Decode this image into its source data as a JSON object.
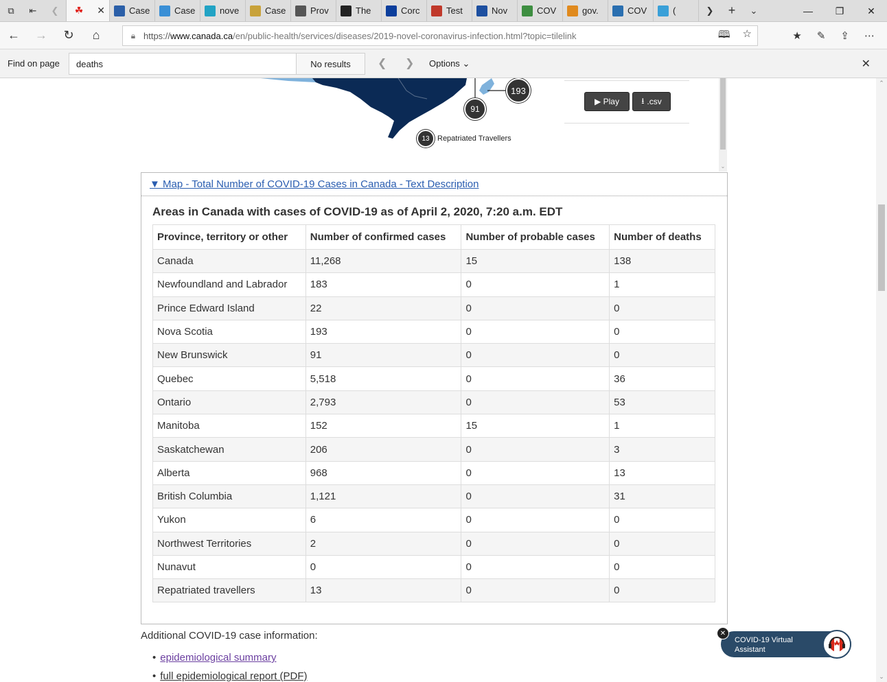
{
  "browser": {
    "tabs": [
      {
        "label": "",
        "icon": "maple-leaf-icon",
        "active": true
      },
      {
        "label": "Case",
        "icon": "cbc-icon"
      },
      {
        "label": "Case",
        "icon": "chart-icon"
      },
      {
        "label": "nove",
        "icon": "cross-icon"
      },
      {
        "label": "Case",
        "icon": "doc-icon"
      },
      {
        "label": "Prov",
        "icon": "bison-icon"
      },
      {
        "label": "The",
        "icon": "globe-dark-icon"
      },
      {
        "label": "Corc",
        "icon": "quebec-flag-icon"
      },
      {
        "label": "Test",
        "icon": "pen-icon"
      },
      {
        "label": "Nov",
        "icon": "ns-flag-icon"
      },
      {
        "label": "COV",
        "icon": "plant-icon"
      },
      {
        "label": "gov.",
        "icon": "leaf-cluster-icon"
      },
      {
        "label": "COV",
        "icon": "shield-icon"
      },
      {
        "label": "(",
        "icon": "dome-icon"
      }
    ],
    "url_prefix": "https://",
    "url_host": "www.canada.ca",
    "url_path": "/en/public-health/services/diseases/2019-novel-coronavirus-infection.html?topic=tilelink"
  },
  "findbar": {
    "label": "Find on page",
    "query": "deaths",
    "result": "No results",
    "options_label": "Options"
  },
  "map": {
    "bubbles": [
      {
        "label": "193"
      },
      {
        "label": "91"
      },
      {
        "label": "13"
      }
    ],
    "repatriated_label": "Repatriated Travellers",
    "play_label": "▶ Play",
    "csv_label": ".csv"
  },
  "details": {
    "summary": "▼ Map - Total Number of COVID-19 Cases in Canada - Text Description",
    "caption": "Areas in Canada with cases of COVID-19 as of April 2, 2020, 7:20 a.m. EDT",
    "headers": [
      "Province, territory or other",
      "Number of confirmed cases",
      "Number of probable cases",
      "Number of deaths"
    ],
    "rows": [
      [
        "Canada",
        "11,268",
        "15",
        "138"
      ],
      [
        "Newfoundland and Labrador",
        "183",
        "0",
        "1"
      ],
      [
        "Prince Edward Island",
        "22",
        "0",
        "0"
      ],
      [
        "Nova Scotia",
        "193",
        "0",
        "0"
      ],
      [
        "New Brunswick",
        "91",
        "0",
        "0"
      ],
      [
        "Quebec",
        "5,518",
        "0",
        "36"
      ],
      [
        "Ontario",
        "2,793",
        "0",
        "53"
      ],
      [
        "Manitoba",
        "152",
        "15",
        "1"
      ],
      [
        "Saskatchewan",
        "206",
        "0",
        "3"
      ],
      [
        "Alberta",
        "968",
        "0",
        "13"
      ],
      [
        "British Columbia",
        "1,121",
        "0",
        "31"
      ],
      [
        "Yukon",
        "6",
        "0",
        "0"
      ],
      [
        "Northwest Territories",
        "2",
        "0",
        "0"
      ],
      [
        "Nunavut",
        "0",
        "0",
        "0"
      ],
      [
        "Repatriated travellers",
        "13",
        "0",
        "0"
      ]
    ]
  },
  "additional": {
    "intro": "Additional COVID-19 case information:",
    "links": [
      "epidemiological summary",
      "full epidemiological report (PDF)"
    ]
  },
  "assistant": {
    "label": "COVID-19 Virtual Assistant"
  }
}
